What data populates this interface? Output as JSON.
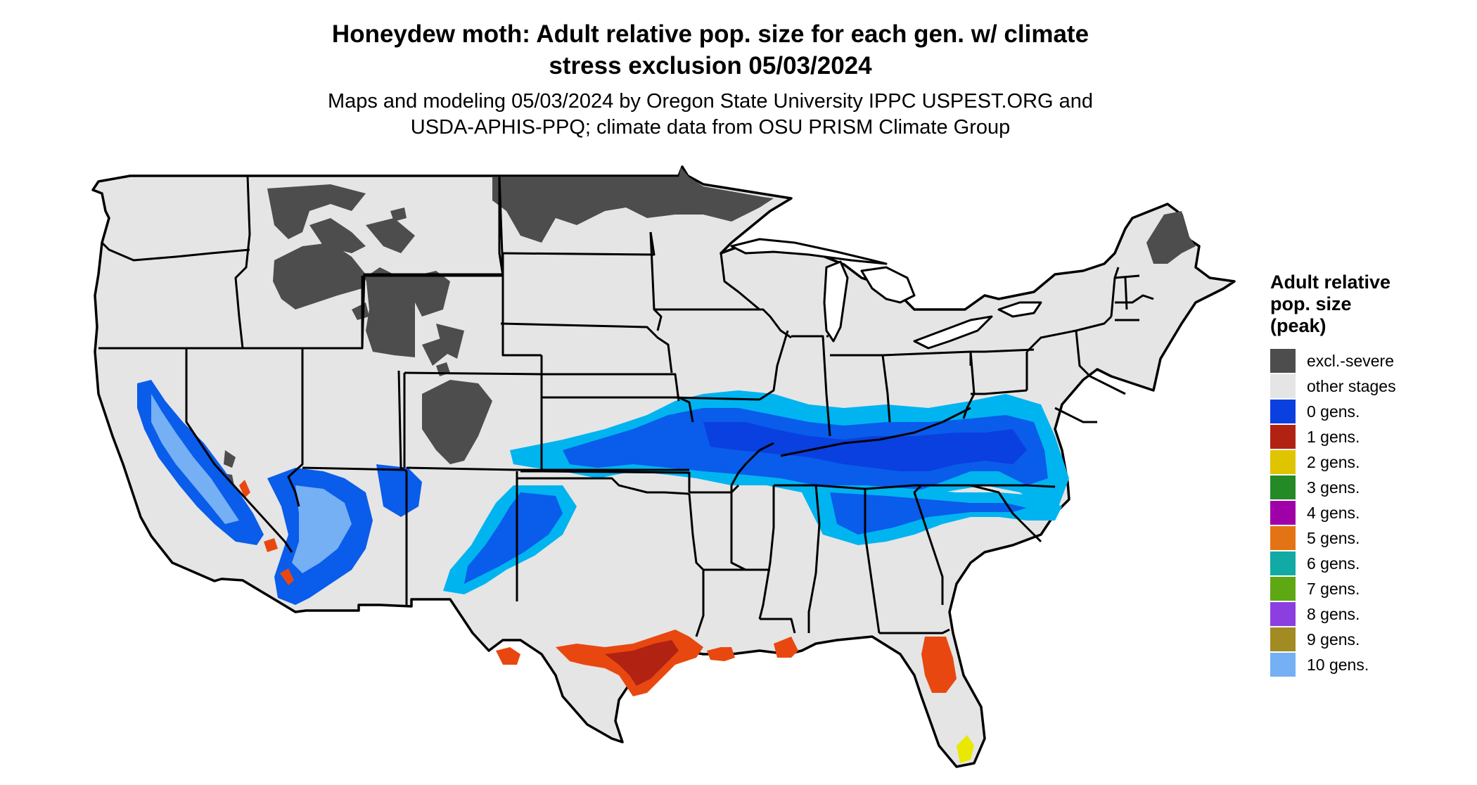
{
  "title": {
    "line1": "Honeydew moth: Adult relative pop. size for each gen. w/ climate",
    "line2": "stress exclusion 05/03/2024"
  },
  "subtitle": {
    "line1": "Maps and modeling 05/03/2024 by Oregon State University IPPC USPEST.ORG and",
    "line2": "USDA-APHIS-PPQ; climate data from OSU PRISM Climate Group"
  },
  "map": {
    "base_fill": "#e5e5e5",
    "border_color": "#000000"
  },
  "legend": {
    "title_lines": [
      "Adult relative",
      "pop. size",
      "(peak)"
    ],
    "items": [
      {
        "label": "excl.-severe",
        "color": "#4d4d4d"
      },
      {
        "label": "other stages",
        "color": "#e5e5e5"
      },
      {
        "label": "0 gens.",
        "color": "#0a3fe0"
      },
      {
        "label": "1 gens.",
        "color": "#b22212"
      },
      {
        "label": "2 gens.",
        "color": "#dfc500"
      },
      {
        "label": "3 gens.",
        "color": "#238a26"
      },
      {
        "label": "4 gens.",
        "color": "#a000a8"
      },
      {
        "label": "5 gens.",
        "color": "#e37414"
      },
      {
        "label": "6 gens.",
        "color": "#11aaa4"
      },
      {
        "label": "7 gens.",
        "color": "#5ea813"
      },
      {
        "label": "8 gens.",
        "color": "#8c3fe0"
      },
      {
        "label": "9 gens.",
        "color": "#a38b24"
      },
      {
        "label": "10 gens.",
        "color": "#74b0f3"
      }
    ]
  }
}
